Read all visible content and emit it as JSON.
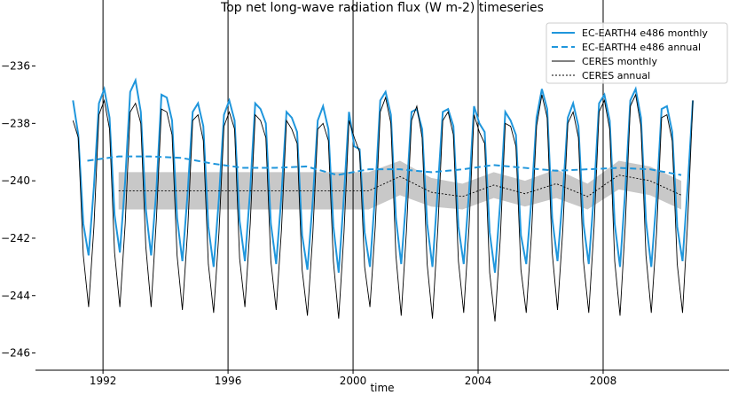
{
  "chart_data": {
    "type": "line",
    "title": "Top net long-wave radiation flux (W m-2) timeseries",
    "xlabel": "time",
    "xlim": [
      1989.84,
      2012.03
    ],
    "ylim": [
      -246.6,
      -233.7
    ],
    "xticks": [
      1992,
      1996,
      2000,
      2004,
      2008
    ],
    "yticks": [
      {
        "value": -246,
        "label": "−246"
      },
      {
        "value": -244,
        "label": "−244"
      },
      {
        "value": -242,
        "label": "−242"
      },
      {
        "value": -240,
        "label": "−240"
      },
      {
        "value": -238,
        "label": "−238"
      },
      {
        "value": -236,
        "label": "−236"
      }
    ],
    "xgrid": true,
    "legend": "upper right",
    "x": [
      1991.04,
      1991.21,
      1991.37,
      1991.54,
      1991.71,
      1991.87,
      1992.04,
      1992.21,
      1992.37,
      1992.54,
      1992.71,
      1992.87,
      1993.04,
      1993.21,
      1993.37,
      1993.54,
      1993.71,
      1993.87,
      1994.04,
      1994.21,
      1994.37,
      1994.54,
      1994.71,
      1994.87,
      1995.04,
      1995.21,
      1995.37,
      1995.54,
      1995.71,
      1995.87,
      1996.04,
      1996.21,
      1996.37,
      1996.54,
      1996.71,
      1996.87,
      1997.04,
      1997.21,
      1997.37,
      1997.54,
      1997.71,
      1997.87,
      1998.04,
      1998.21,
      1998.37,
      1998.54,
      1998.71,
      1998.87,
      1999.04,
      1999.21,
      1999.37,
      1999.54,
      1999.71,
      1999.87,
      2000.04,
      2000.21,
      2000.37,
      2000.54,
      2000.71,
      2000.87,
      2001.04,
      2001.21,
      2001.37,
      2001.54,
      2001.71,
      2001.87,
      2002.04,
      2002.21,
      2002.37,
      2002.54,
      2002.71,
      2002.87,
      2003.04,
      2003.21,
      2003.37,
      2003.54,
      2003.71,
      2003.87,
      2004.04,
      2004.21,
      2004.37,
      2004.54,
      2004.71,
      2004.87,
      2005.04,
      2005.21,
      2005.37,
      2005.54,
      2005.71,
      2005.87,
      2006.04,
      2006.21,
      2006.37,
      2006.54,
      2006.71,
      2006.87,
      2007.04,
      2007.21,
      2007.37,
      2007.54,
      2007.71,
      2007.87,
      2008.04,
      2008.21,
      2008.37,
      2008.54,
      2008.71,
      2008.87,
      2009.04,
      2009.21,
      2009.37,
      2009.54,
      2009.71,
      2009.87,
      2010.04,
      2010.21,
      2010.37,
      2010.54,
      2010.71,
      2010.87
    ],
    "series": [
      {
        "name": "EC-EARTH4 e486 monthly",
        "color": "#1f96dc",
        "style": "solid",
        "width": 2,
        "values": [
          -237.2,
          -238.4,
          -241.5,
          -242.6,
          -240.2,
          -237.3,
          -236.8,
          -237.8,
          -241.2,
          -242.5,
          -240.0,
          -236.9,
          -236.5,
          -237.6,
          -241.0,
          -242.6,
          -240.3,
          -237.0,
          -237.1,
          -237.9,
          -241.3,
          -242.8,
          -240.4,
          -237.6,
          -237.3,
          -238.1,
          -241.6,
          -243.0,
          -240.6,
          -237.7,
          -237.2,
          -237.9,
          -241.4,
          -242.8,
          -240.3,
          -237.3,
          -237.5,
          -238.0,
          -241.5,
          -242.9,
          -240.5,
          -237.6,
          -237.8,
          -238.3,
          -241.9,
          -243.1,
          -240.7,
          -237.9,
          -237.4,
          -238.2,
          -241.6,
          -243.2,
          -240.5,
          -237.6,
          -238.8,
          -238.9,
          -241.8,
          -243.0,
          -240.4,
          -237.2,
          -236.9,
          -237.7,
          -241.3,
          -242.9,
          -240.5,
          -237.6,
          -237.5,
          -238.2,
          -241.5,
          -243.0,
          -240.3,
          -237.6,
          -237.5,
          -238.1,
          -241.6,
          -242.9,
          -240.4,
          -237.4,
          -238.0,
          -238.3,
          -241.8,
          -243.2,
          -240.7,
          -237.6,
          -237.9,
          -238.4,
          -241.9,
          -242.9,
          -240.6,
          -237.8,
          -236.8,
          -237.5,
          -241.3,
          -242.8,
          -240.5,
          -237.8,
          -237.3,
          -238.1,
          -241.5,
          -242.9,
          -240.4,
          -237.3,
          -237.0,
          -237.9,
          -241.5,
          -243.0,
          -240.3,
          -237.2,
          -236.8,
          -237.8,
          -241.4,
          -243.0,
          -240.6,
          -237.5,
          -237.4,
          -238.3,
          -241.6,
          -242.8,
          -240.1,
          -237.2
        ]
      },
      {
        "name": "EC-EARTH4 e486 annual",
        "color": "#1f96dc",
        "style": "dashed",
        "width": 2,
        "x": [
          1991.5,
          1992.5,
          1993.5,
          1994.5,
          1995.5,
          1996.5,
          1997.5,
          1998.5,
          1999.5,
          2000.5,
          2001.5,
          2002.5,
          2003.5,
          2004.5,
          2005.5,
          2006.5,
          2007.5,
          2008.5,
          2009.5,
          2010.5
        ],
        "values": [
          -239.3,
          -239.15,
          -239.15,
          -239.2,
          -239.4,
          -239.55,
          -239.55,
          -239.5,
          -239.8,
          -239.6,
          -239.6,
          -239.7,
          -239.6,
          -239.45,
          -239.55,
          -239.65,
          -239.6,
          -239.55,
          -239.6,
          -239.8
        ]
      },
      {
        "name": "CERES monthly",
        "color": "#000000",
        "style": "solid",
        "width": 0.9,
        "values": [
          -237.9,
          -238.5,
          -242.6,
          -244.4,
          -241.6,
          -237.7,
          -237.2,
          -238.2,
          -242.5,
          -244.4,
          -241.5,
          -237.6,
          -237.3,
          -238.0,
          -242.3,
          -244.4,
          -241.3,
          -237.5,
          -237.6,
          -238.4,
          -242.6,
          -244.5,
          -241.7,
          -237.9,
          -237.7,
          -238.6,
          -242.9,
          -244.6,
          -241.8,
          -238.1,
          -237.6,
          -238.2,
          -242.7,
          -244.4,
          -241.5,
          -237.7,
          -237.9,
          -238.5,
          -242.8,
          -244.5,
          -241.7,
          -237.9,
          -238.2,
          -238.7,
          -243.1,
          -244.7,
          -241.9,
          -238.2,
          -238.0,
          -238.6,
          -242.8,
          -244.8,
          -241.8,
          -237.9,
          -238.5,
          -239.0,
          -243.0,
          -244.4,
          -241.6,
          -237.6,
          -237.1,
          -238.0,
          -242.6,
          -244.7,
          -241.7,
          -237.9,
          -237.4,
          -238.5,
          -242.9,
          -244.8,
          -241.7,
          -237.9,
          -237.6,
          -238.4,
          -242.8,
          -244.6,
          -241.6,
          -237.7,
          -238.3,
          -238.7,
          -243.2,
          -244.9,
          -242.0,
          -238.0,
          -238.1,
          -238.8,
          -243.1,
          -244.6,
          -241.8,
          -238.1,
          -237.0,
          -237.8,
          -242.5,
          -244.5,
          -241.7,
          -238.0,
          -237.6,
          -238.5,
          -242.8,
          -244.6,
          -241.6,
          -237.6,
          -237.2,
          -238.2,
          -242.8,
          -244.7,
          -241.5,
          -237.4,
          -237.0,
          -238.1,
          -242.6,
          -244.6,
          -241.8,
          -237.8,
          -237.7,
          -238.6,
          -242.9,
          -244.6,
          -241.3,
          -237.2
        ]
      },
      {
        "name": "CERES annual",
        "color": "#000000",
        "style": "dotted",
        "width": 0.9,
        "band_color": "#c8c8c8",
        "x": [
          1992.5,
          1993.5,
          1994.5,
          1995.5,
          1996.5,
          1997.5,
          1998.5,
          1999.5,
          2000.5,
          2001.5,
          2002.5,
          2003.5,
          2004.5,
          2005.5,
          2006.5,
          2007.5,
          2008.5,
          2009.5,
          2010.5
        ],
        "values": [
          -240.35,
          -240.35,
          -240.35,
          -240.35,
          -240.35,
          -240.35,
          -240.35,
          -240.35,
          -240.35,
          -239.85,
          -240.4,
          -240.55,
          -240.15,
          -240.45,
          -240.1,
          -240.55,
          -239.8,
          -240.0,
          -240.5
        ],
        "lower": [
          -241.0,
          -241.0,
          -241.0,
          -241.0,
          -241.0,
          -241.0,
          -241.0,
          -241.0,
          -241.0,
          -240.5,
          -240.9,
          -241.0,
          -240.6,
          -240.9,
          -240.6,
          -241.0,
          -240.3,
          -240.5,
          -241.0
        ],
        "upper": [
          -239.7,
          -239.7,
          -239.7,
          -239.7,
          -239.7,
          -239.7,
          -239.7,
          -239.7,
          -239.7,
          -239.3,
          -239.9,
          -240.1,
          -239.7,
          -240.0,
          -239.6,
          -240.1,
          -239.3,
          -239.5,
          -240.0
        ]
      }
    ]
  }
}
